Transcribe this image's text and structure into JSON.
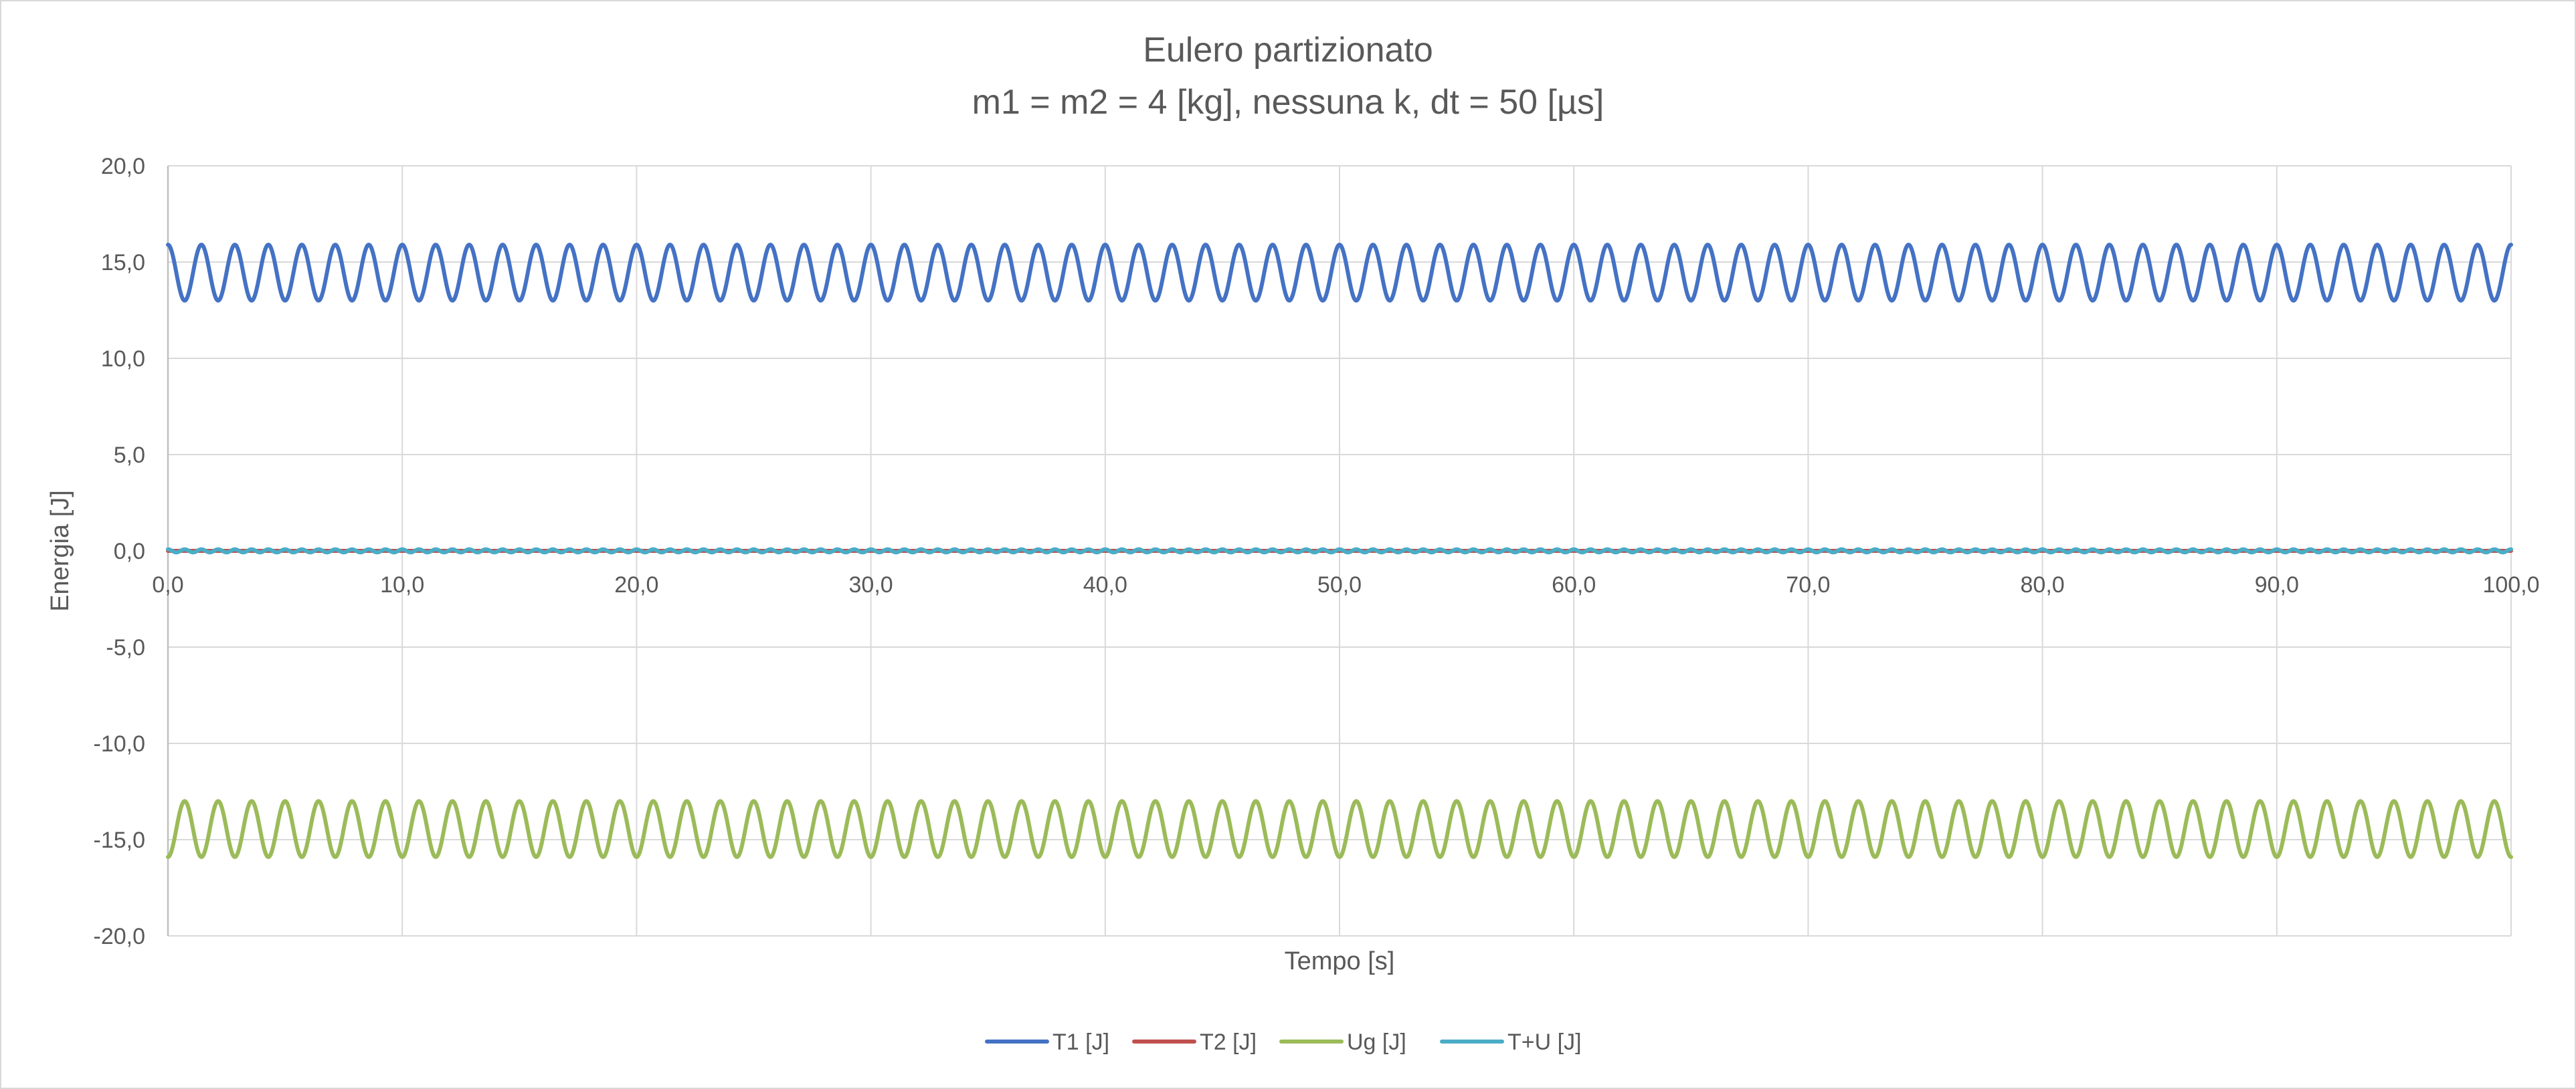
{
  "chart_data": {
    "type": "line",
    "title": "Eulero partizionato",
    "subtitle": "m1 = m2 = 4 [kg], nessuna k, dt = 50 [µs]",
    "xlabel": "Tempo [s]",
    "ylabel": "Energia [J]",
    "xlim": [
      0,
      100
    ],
    "ylim": [
      -20,
      20
    ],
    "x_ticks": [
      0,
      10,
      20,
      30,
      40,
      50,
      60,
      70,
      80,
      90,
      100
    ],
    "x_tick_labels": [
      "0,0",
      "10,0",
      "20,0",
      "30,0",
      "40,0",
      "50,0",
      "60,0",
      "70,0",
      "80,0",
      "90,0",
      "100,0"
    ],
    "y_ticks": [
      20,
      15,
      10,
      5,
      0,
      -5,
      -10,
      -15,
      -20
    ],
    "y_tick_labels": [
      "20,0",
      "15,0",
      "10,0",
      "5,0",
      "0,0",
      "-5,0",
      "-10,0",
      "-15,0",
      "-20,0"
    ],
    "grid": true,
    "legend_position": "bottom",
    "series": [
      {
        "name": "T1 [J]",
        "color": "#4472C4",
        "kind": "oscillation",
        "center": 14.45,
        "amplitude": 1.45,
        "cycles": 70,
        "phase_start": "high",
        "x_range": [
          0,
          100
        ],
        "y_range": [
          13.0,
          15.9
        ]
      },
      {
        "name": "T2 [J]",
        "color": "#C0504D",
        "kind": "constant",
        "value": 0,
        "x_range": [
          0,
          100
        ]
      },
      {
        "name": "Ug [J]",
        "color": "#9BBB59",
        "kind": "oscillation",
        "center": -14.45,
        "amplitude": 1.45,
        "cycles": 70,
        "phase_start": "low",
        "x_range": [
          0,
          100
        ],
        "y_range": [
          -15.9,
          -13.0
        ]
      },
      {
        "name": "T+U [J]",
        "color": "#4BACC6",
        "kind": "oscillation",
        "center": 0,
        "amplitude": 0.08,
        "cycles": 140,
        "phase_start": "high",
        "x_range": [
          0,
          100
        ],
        "y_range": [
          -0.08,
          0.08
        ]
      }
    ]
  }
}
